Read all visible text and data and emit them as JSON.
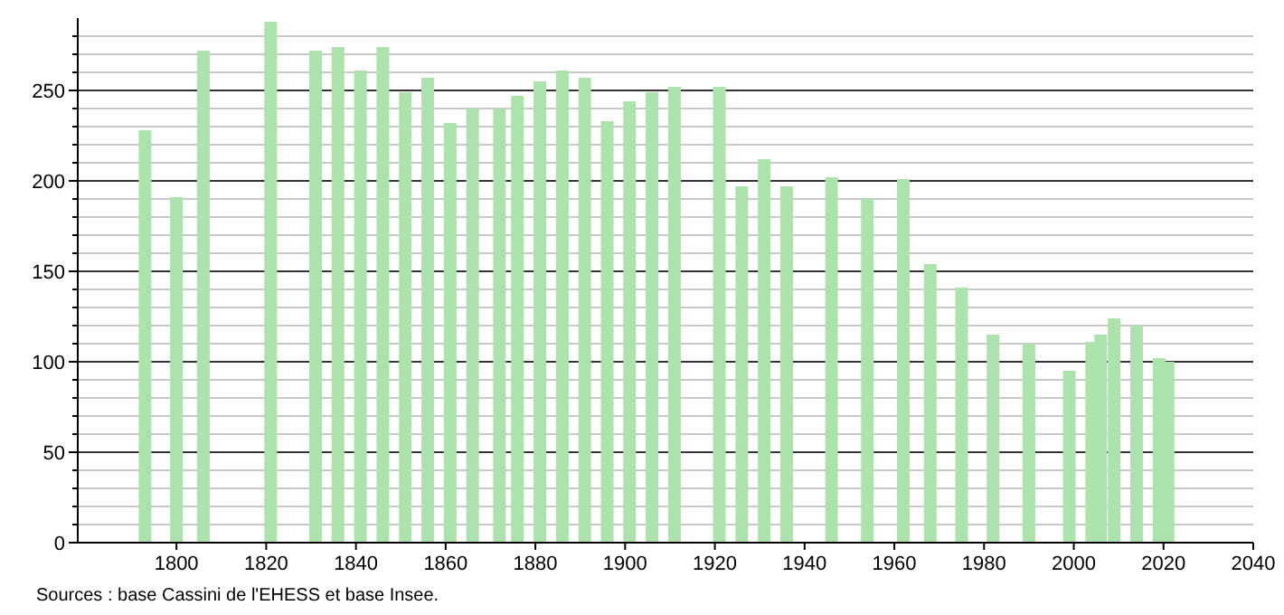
{
  "chart_data": {
    "type": "bar",
    "x": [
      1793,
      1800,
      1806,
      1821,
      1831,
      1836,
      1841,
      1846,
      1851,
      1856,
      1861,
      1866,
      1872,
      1876,
      1881,
      1886,
      1891,
      1896,
      1901,
      1906,
      1911,
      1921,
      1926,
      1931,
      1936,
      1946,
      1954,
      1962,
      1968,
      1975,
      1982,
      1990,
      1999,
      2004,
      2006,
      2009,
      2014,
      2019,
      2021
    ],
    "values": [
      228,
      191,
      272,
      288,
      272,
      274,
      261,
      274,
      249,
      257,
      232,
      240,
      240,
      247,
      255,
      261,
      257,
      233,
      244,
      249,
      252,
      252,
      197,
      212,
      197,
      202,
      190,
      201,
      154,
      141,
      115,
      110,
      95,
      111,
      115,
      124,
      120,
      102,
      100
    ],
    "color": "#ace3ac",
    "xlim": [
      1778,
      2040
    ],
    "xticks": [
      1800,
      1820,
      1840,
      1860,
      1880,
      1900,
      1920,
      1940,
      1960,
      1980,
      2000,
      2020,
      2040
    ],
    "ylim": [
      0,
      290
    ],
    "yticks": [
      0,
      {
        "value": 10,
        "label": null
      },
      {
        "value": 20,
        "label": null
      },
      {
        "value": 30,
        "label": null
      },
      {
        "value": 40,
        "label": null
      },
      50,
      {
        "value": 60,
        "label": null
      },
      {
        "value": 70,
        "label": null
      },
      {
        "value": 80,
        "label": null
      },
      {
        "value": 90,
        "label": null
      },
      100,
      {
        "value": 110,
        "label": null
      },
      {
        "value": 120,
        "label": null
      },
      {
        "value": 130,
        "label": null
      },
      {
        "value": 140,
        "label": null
      },
      150,
      {
        "value": 160,
        "label": null
      },
      {
        "value": 170,
        "label": null
      },
      {
        "value": 180,
        "label": null
      },
      {
        "value": 190,
        "label": null
      },
      200,
      {
        "value": 210,
        "label": null
      },
      {
        "value": 220,
        "label": null
      },
      {
        "value": 230,
        "label": null
      },
      {
        "value": 240,
        "label": null
      },
      250,
      {
        "value": 260,
        "label": null
      },
      {
        "value": 270,
        "label": null
      },
      {
        "value": 280,
        "label": null
      }
    ],
    "grid": "y",
    "annotations": [
      "Sources : base Cassini de l'EHESS et base Insee."
    ]
  }
}
